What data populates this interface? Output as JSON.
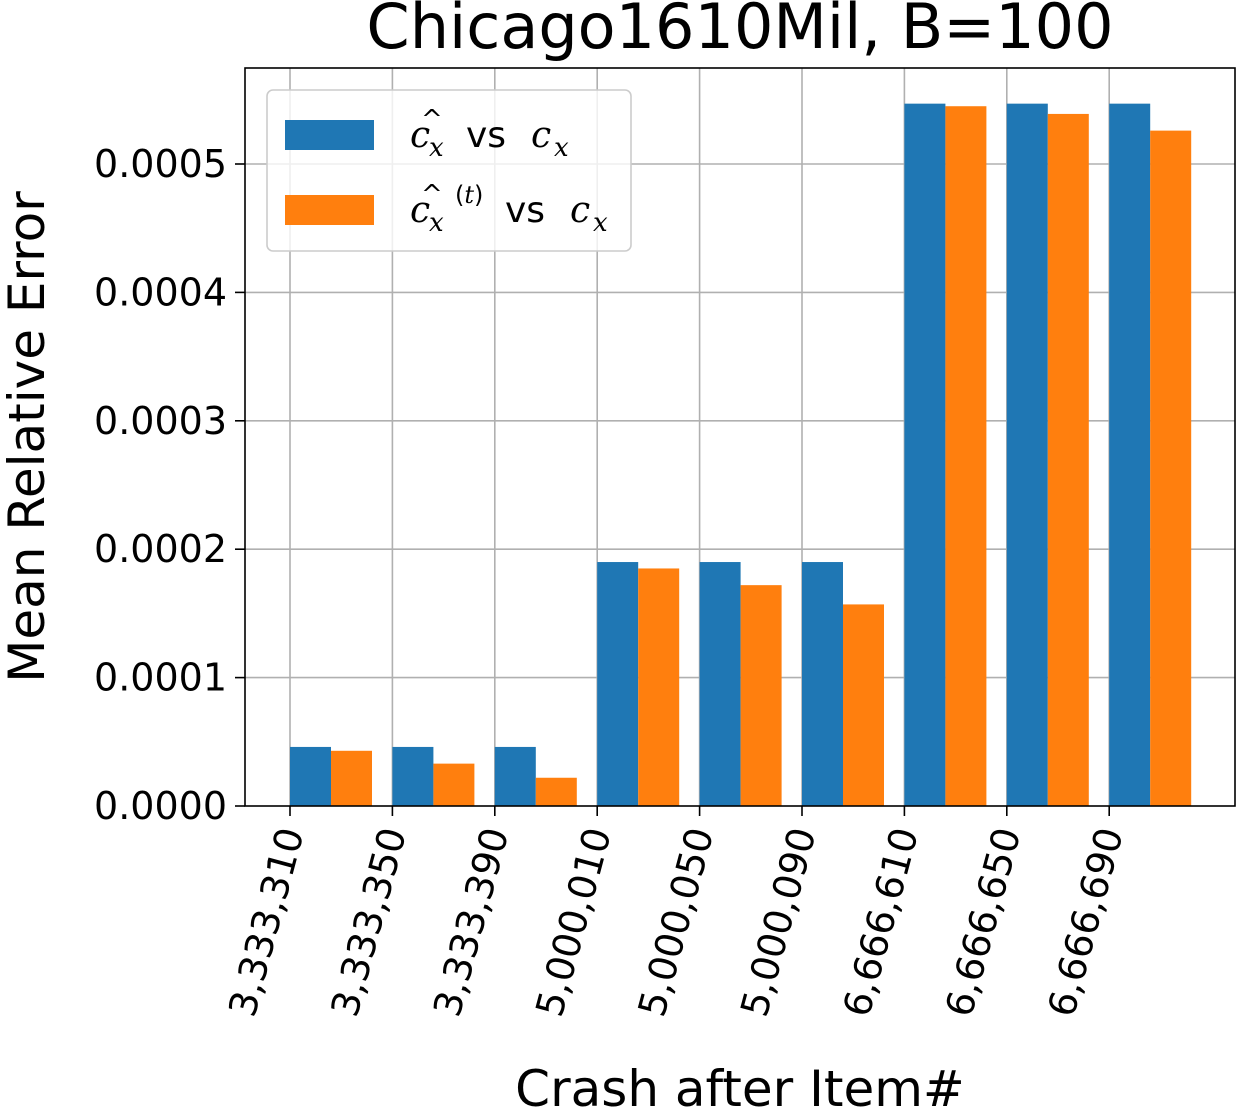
{
  "chart_data": {
    "type": "bar",
    "title": "Chicago1610Mil, B=100",
    "xlabel": "Crash after Item#",
    "ylabel": "Mean Relative Error",
    "categories": [
      "3,333,310",
      "3,333,350",
      "3,333,390",
      "5,000,010",
      "5,000,050",
      "5,000,090",
      "6,666,610",
      "6,666,650",
      "6,666,690"
    ],
    "series": [
      {
        "name": "ĉx vs cx",
        "color": "#1f77b4",
        "values": [
          4.6e-05,
          4.6e-05,
          4.6e-05,
          0.00019,
          0.00019,
          0.00019,
          0.000547,
          0.000547,
          0.000547
        ]
      },
      {
        "name": "ĉx(t) vs cx",
        "color": "#ff7f0e",
        "values": [
          4.3e-05,
          3.3e-05,
          2.2e-05,
          0.000185,
          0.000172,
          0.000157,
          0.000545,
          0.000539,
          0.000526
        ]
      }
    ],
    "ylim": [
      0,
      0.00057
    ],
    "yticks": [
      "0.0000",
      "0.0001",
      "0.0002",
      "0.0003",
      "0.0004",
      "0.0005"
    ],
    "grid": true,
    "legend_position": "top-left"
  }
}
